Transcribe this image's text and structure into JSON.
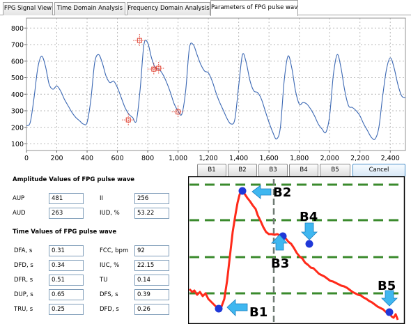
{
  "tabs": [
    {
      "label": "FPG Signal View"
    },
    {
      "label": "Time Domain Analysis"
    },
    {
      "label": "Frequency Domain Analysis"
    },
    {
      "label": "Parameters of FPG pulse wave",
      "active": true
    }
  ],
  "chart_data": {
    "type": "line",
    "title": "",
    "xlabel": "",
    "ylabel": "",
    "xlim": [
      0,
      2500
    ],
    "ylim": [
      60,
      860
    ],
    "x_ticks": [
      0,
      200,
      400,
      600,
      800,
      1000,
      1200,
      1400,
      1600,
      1800,
      2000,
      2200,
      2400
    ],
    "x_tick_labels": [
      "0",
      "200",
      "400",
      "600",
      "800",
      "1,000",
      "1,200",
      "1,400",
      "1,600",
      "1,800",
      "2,000",
      "2,200",
      "2,400"
    ],
    "y_ticks": [
      100,
      200,
      300,
      400,
      500,
      600,
      700,
      800
    ],
    "y_tick_labels": [
      "100",
      "200",
      "300",
      "400",
      "500",
      "600",
      "700",
      "800"
    ],
    "grid": true,
    "series": [
      {
        "color": "#3a67b3",
        "x": [
          0,
          25,
          50,
          75,
          100,
          125,
          150,
          175,
          200,
          225,
          250,
          275,
          300,
          325,
          350,
          375,
          400,
          425,
          450,
          475,
          500,
          525,
          550,
          575,
          600,
          625,
          650,
          675,
          700,
          725,
          750,
          775,
          800,
          825,
          850,
          875,
          900,
          925,
          950,
          975,
          1000,
          1025,
          1050,
          1075,
          1100,
          1125,
          1150,
          1175,
          1200,
          1225,
          1250,
          1275,
          1300,
          1325,
          1350,
          1375,
          1400,
          1425,
          1450,
          1475,
          1500,
          1525,
          1550,
          1575,
          1600,
          1625,
          1650,
          1675,
          1700,
          1725,
          1750,
          1775,
          1800,
          1825,
          1850,
          1875,
          1900,
          1925,
          1950,
          1975,
          2000,
          2025,
          2050,
          2075,
          2100,
          2125,
          2150,
          2175,
          2200,
          2225,
          2250,
          2275,
          2300,
          2325,
          2350,
          2375,
          2400,
          2425,
          2450,
          2475,
          2500
        ],
        "y": [
          210,
          230,
          380,
          560,
          630,
          570,
          460,
          430,
          450,
          420,
          370,
          330,
          290,
          260,
          240,
          220,
          230,
          370,
          590,
          640,
          590,
          510,
          470,
          480,
          440,
          380,
          320,
          280,
          260,
          240,
          430,
          700,
          710,
          620,
          560,
          550,
          520,
          470,
          410,
          340,
          300,
          280,
          420,
          680,
          700,
          640,
          580,
          540,
          530,
          480,
          410,
          350,
          300,
          250,
          220,
          250,
          450,
          640,
          590,
          480,
          420,
          410,
          370,
          300,
          230,
          170,
          130,
          200,
          480,
          630,
          560,
          420,
          340,
          350,
          340,
          310,
          270,
          220,
          190,
          170,
          270,
          520,
          640,
          560,
          420,
          330,
          320,
          300,
          270,
          220,
          180,
          140,
          130,
          200,
          390,
          550,
          620,
          560,
          460,
          390,
          380
        ]
      }
    ],
    "annotations": [
      {
        "label": "B1",
        "x": 672,
        "y": 245
      },
      {
        "label": "B2",
        "x": 746,
        "y": 725
      },
      {
        "label": "B3",
        "x": 840,
        "y": 552
      },
      {
        "label": "B4",
        "x": 872,
        "y": 557
      },
      {
        "label": "B5",
        "x": 1000,
        "y": 293
      }
    ]
  },
  "buttons": [
    {
      "label": "B1"
    },
    {
      "label": "B2"
    },
    {
      "label": "B3"
    },
    {
      "label": "B4"
    },
    {
      "label": "B5"
    },
    {
      "label": "Cancel"
    }
  ],
  "amplitude": {
    "title": "Amplitude Values of FPG pulse wave",
    "fields": [
      {
        "label": "AUP",
        "value": "481"
      },
      {
        "label": "II",
        "value": "256"
      },
      {
        "label": "AUD",
        "value": "263"
      },
      {
        "label": "IUD, %",
        "value": "53.22"
      }
    ]
  },
  "time": {
    "title": "Time Values of FPG pulse wave",
    "fields": [
      {
        "label": "DFA, s",
        "value": "0.31"
      },
      {
        "label": "FCC, bpm",
        "value": "92"
      },
      {
        "label": "DFD, s",
        "value": "0.34"
      },
      {
        "label": "IUC, %",
        "value": "22.15"
      },
      {
        "label": "DFR, s",
        "value": "0.51"
      },
      {
        "label": "TU",
        "value": "0.14"
      },
      {
        "label": "DUP, s",
        "value": "0.65"
      },
      {
        "label": "DFS, s",
        "value": "0.39"
      },
      {
        "label": "TRU, s",
        "value": "0.25"
      },
      {
        "label": "DFD, s",
        "value": "0.26"
      }
    ]
  },
  "diagram": {
    "labels": [
      "B2",
      "B4",
      "B3",
      "B1",
      "B5"
    ],
    "grid_color": "#3a8a2c",
    "wave_color": "#ff2a1a",
    "point_color": "#1f38d8",
    "arrow_color": "#3fb7f0"
  }
}
